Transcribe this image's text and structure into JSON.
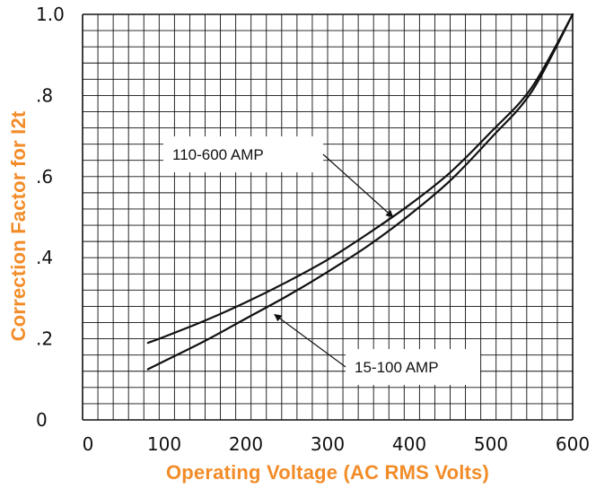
{
  "chart_data": {
    "type": "line",
    "xlabel": "Operating Voltage (AC RMS Volts)",
    "ylabel": "Correction Factor for I2t",
    "xlim": [
      0,
      600
    ],
    "ylim": [
      0,
      1.0
    ],
    "grid": true,
    "x_ticks": [
      0,
      100,
      200,
      300,
      400,
      500,
      600
    ],
    "x_tick_labels": [
      "0",
      "100",
      "200",
      "300",
      "400",
      "500",
      "600"
    ],
    "y_ticks": [
      0,
      0.2,
      0.4,
      0.6,
      0.8,
      1.0
    ],
    "y_tick_labels": [
      "0",
      ".2",
      ".4",
      ".6",
      ".8",
      "1.0"
    ],
    "colors": {
      "axis_titles": "#f28c28",
      "lines": "#111111",
      "grid": "#111111"
    },
    "series": [
      {
        "name": "110-600 AMP",
        "x": [
          80,
          100,
          150,
          200,
          250,
          300,
          350,
          400,
          450,
          500,
          550,
          600
        ],
        "y": [
          0.19,
          0.205,
          0.245,
          0.29,
          0.34,
          0.395,
          0.46,
          0.53,
          0.61,
          0.71,
          0.82,
          1.0
        ]
      },
      {
        "name": "15-100 AMP",
        "x": [
          80,
          100,
          150,
          200,
          250,
          300,
          350,
          400,
          450,
          500,
          550,
          600
        ],
        "y": [
          0.125,
          0.145,
          0.195,
          0.25,
          0.305,
          0.365,
          0.43,
          0.505,
          0.59,
          0.695,
          0.81,
          1.0
        ]
      }
    ],
    "annotations": [
      {
        "text": "110-600 AMP",
        "series": "110-600 AMP",
        "arrow_to": {
          "x": 380,
          "y": 0.5
        }
      },
      {
        "text": "15-100 AMP",
        "series": "15-100 AMP",
        "arrow_to": {
          "x": 235,
          "y": 0.26
        }
      }
    ]
  }
}
